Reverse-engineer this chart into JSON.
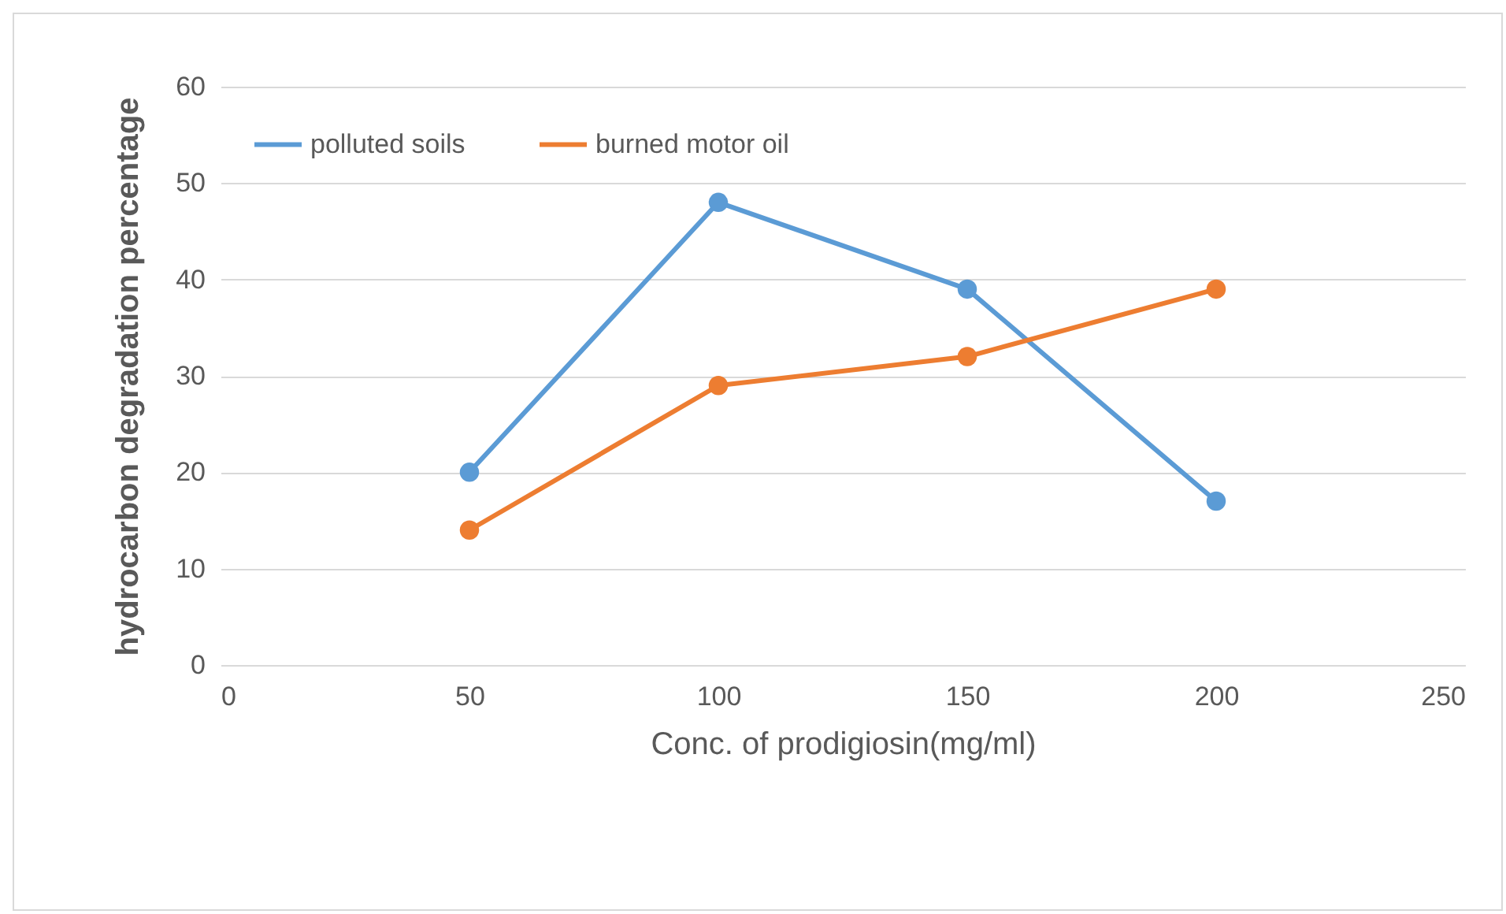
{
  "chart_data": {
    "type": "line",
    "xlabel": "Conc. of prodigiosin(mg/ml)",
    "ylabel": "hydrocarbon degradation percentage",
    "x": [
      50,
      100,
      150,
      200
    ],
    "series": [
      {
        "name": "polluted soils",
        "color": "#5b9bd5",
        "values": [
          20,
          48,
          39,
          17
        ]
      },
      {
        "name": "burned motor oil",
        "color": "#ed7d31",
        "values": [
          14,
          29,
          32,
          39
        ]
      }
    ],
    "xlim": [
      0,
      250
    ],
    "xticks": [
      0,
      50,
      100,
      150,
      200,
      250
    ],
    "ylim": [
      0,
      60
    ],
    "yticks": [
      0,
      10,
      20,
      30,
      40,
      50,
      60
    ],
    "grid": "y",
    "legend": "top left",
    "marker": "circle"
  }
}
